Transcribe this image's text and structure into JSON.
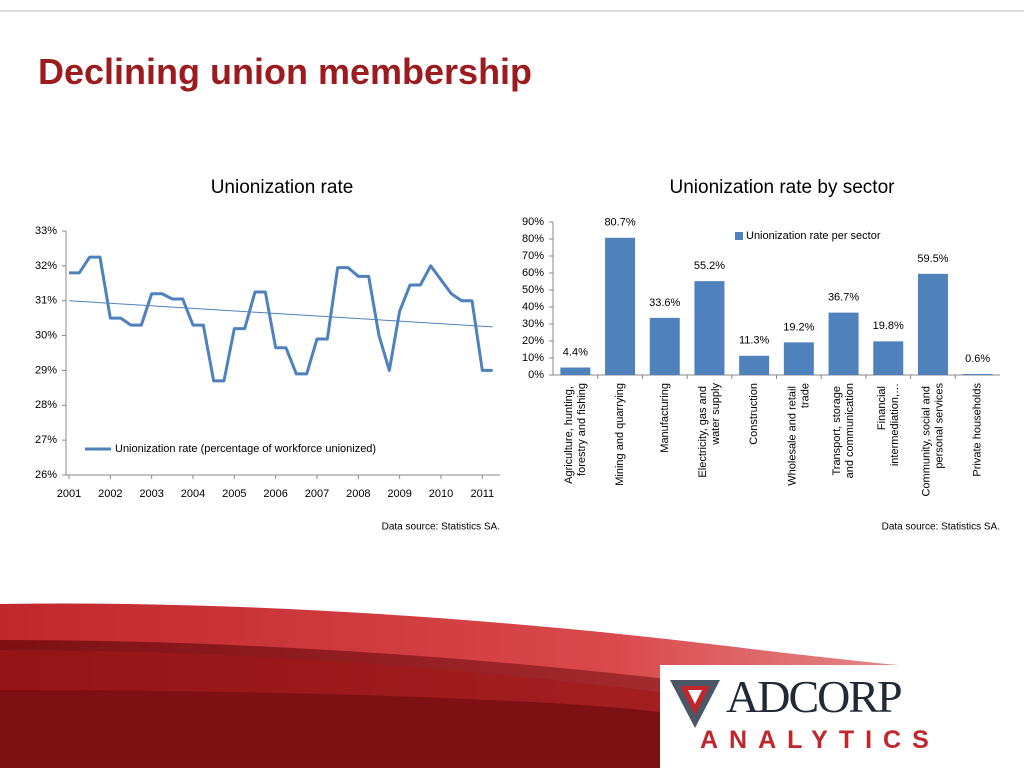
{
  "title": "Declining union membership",
  "chart_data": [
    {
      "type": "line",
      "title": "Unionization rate",
      "note": "Data source: Statistics SA.",
      "x": [
        2001,
        2001.25,
        2001.5,
        2001.75,
        2002,
        2002.25,
        2002.5,
        2002.75,
        2003,
        2003.25,
        2003.5,
        2003.75,
        2004,
        2004.25,
        2004.5,
        2004.75,
        2005,
        2005.25,
        2005.5,
        2005.75,
        2006,
        2006.25,
        2006.5,
        2006.75,
        2007,
        2007.25,
        2007.5,
        2007.75,
        2008,
        2008.25,
        2008.5,
        2008.75,
        2009,
        2009.25,
        2009.5,
        2009.75,
        2010,
        2010.25,
        2010.5,
        2010.75,
        2011,
        2011.25
      ],
      "series": [
        {
          "name": "Unionization rate (percentage of workforce unionized)",
          "color": "#4f81bd",
          "values": [
            31.8,
            31.8,
            32.25,
            32.25,
            30.5,
            30.5,
            30.3,
            30.3,
            31.2,
            31.2,
            31.05,
            31.05,
            30.3,
            30.3,
            28.7,
            28.7,
            30.2,
            30.2,
            31.25,
            31.25,
            29.65,
            29.65,
            28.9,
            28.9,
            29.9,
            29.9,
            31.95,
            31.95,
            31.7,
            31.7,
            30.0,
            29.0,
            30.7,
            31.45,
            31.45,
            32.0,
            31.6,
            31.2,
            31.0,
            31.0,
            29.0,
            29.0
          ]
        }
      ],
      "trend": {
        "x": [
          2001,
          2011.25
        ],
        "values": [
          31.0,
          30.25
        ],
        "color": "#4f81bd"
      },
      "xlim": [
        2001,
        2011.5
      ],
      "xticks": [
        2001,
        2002,
        2003,
        2004,
        2005,
        2006,
        2007,
        2008,
        2009,
        2010,
        2011
      ],
      "ylim": [
        26,
        33
      ],
      "yticks": [
        {
          "value": 26,
          "label": "26%"
        },
        {
          "value": 27,
          "label": "27%"
        },
        {
          "value": 28,
          "label": "28%"
        },
        {
          "value": 29,
          "label": "29%"
        },
        {
          "value": 30,
          "label": "30%"
        },
        {
          "value": 31,
          "label": "31%"
        },
        {
          "value": 32,
          "label": "32%"
        },
        {
          "value": 33,
          "label": "33%"
        }
      ],
      "legend": "lower-left"
    },
    {
      "type": "bar",
      "title": "Unionization rate by sector",
      "note": "Data source: Statistics SA.",
      "categories": [
        "Agriculture, hunting, forestry and fishing",
        "Mining and quarrying",
        "Manufacturing",
        "Electricity, gas and water supply",
        "Construction",
        "Wholesale and retail trade",
        "Transport, storage and communication",
        "Financial intermediation,…",
        "Community, social and personal services",
        "Private households"
      ],
      "series": [
        {
          "name": "Unionization rate per sector",
          "color": "#4f81bd",
          "values": [
            4.4,
            80.7,
            33.6,
            55.2,
            11.3,
            19.2,
            36.7,
            19.8,
            59.5,
            0.6
          ],
          "value_labels": [
            "4.4%",
            "80.7%",
            "33.6%",
            "55.2%",
            "11.3%",
            "19.2%",
            "36.7%",
            "19.8%",
            "59.5%",
            "0.6%"
          ]
        }
      ],
      "ylim": [
        0,
        90
      ],
      "yticks": [
        {
          "value": 0,
          "label": "0%"
        },
        {
          "value": 10,
          "label": "10%"
        },
        {
          "value": 20,
          "label": "20%"
        },
        {
          "value": 30,
          "label": "30%"
        },
        {
          "value": 40,
          "label": "40%"
        },
        {
          "value": 50,
          "label": "50%"
        },
        {
          "value": 60,
          "label": "60%"
        },
        {
          "value": 70,
          "label": "70%"
        },
        {
          "value": 80,
          "label": "80%"
        },
        {
          "value": 90,
          "label": "90%"
        }
      ],
      "legend": "upper-right"
    }
  ],
  "logo": {
    "name": "ADCORP",
    "tagline": "ANALYTICS"
  }
}
